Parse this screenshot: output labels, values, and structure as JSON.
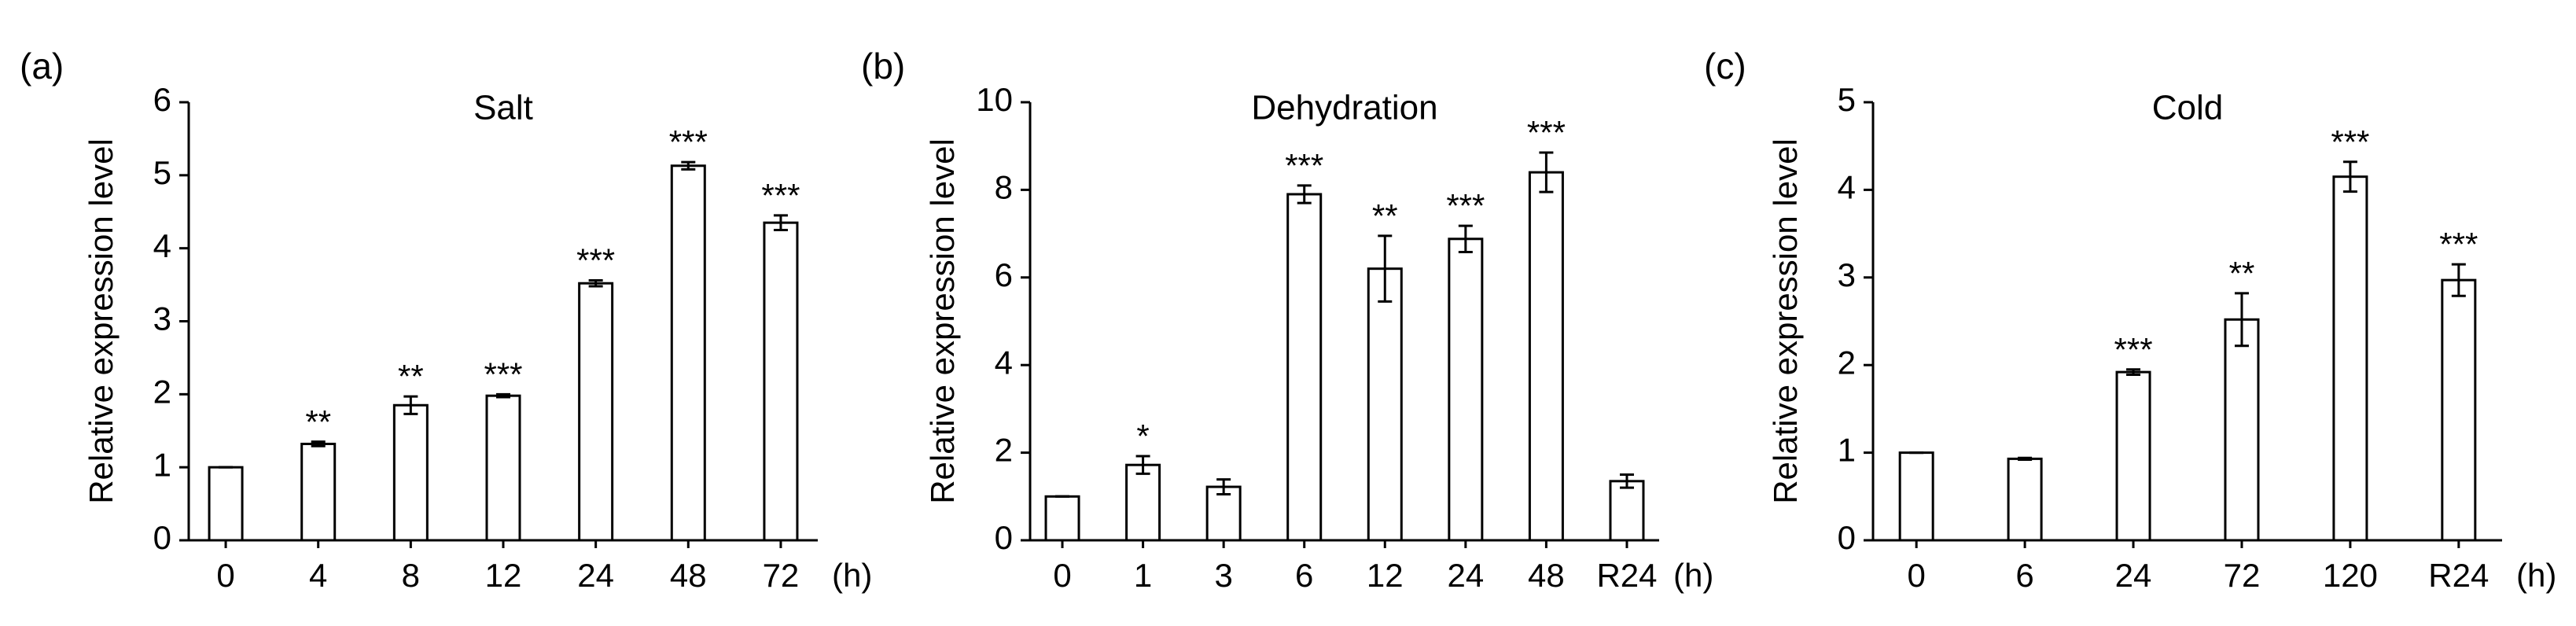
{
  "chart_data": [
    {
      "type": "bar",
      "panel_label": "(a)",
      "title": "Salt",
      "ylabel": "Relative expression level",
      "xunit": "(h)",
      "categories": [
        "0",
        "4",
        "8",
        "12",
        "24",
        "48",
        "72"
      ],
      "values": [
        1,
        1.32,
        1.85,
        1.98,
        3.52,
        5.13,
        4.35
      ],
      "errors": [
        0,
        0.03,
        0.12,
        0.02,
        0.04,
        0.05,
        0.1
      ],
      "annotations": [
        null,
        "**",
        "**",
        "***",
        "***",
        "***",
        "***"
      ],
      "ylim": [
        0,
        6
      ],
      "yticks": [
        0,
        1,
        2,
        3,
        4,
        5,
        6
      ],
      "color": "#ffffff",
      "edgecolor": "#000000"
    },
    {
      "type": "bar",
      "panel_label": "(b)",
      "title": "Dehydration",
      "ylabel": "Relative expression level",
      "xunit": "(h)",
      "categories": [
        "0",
        "1",
        "3",
        "6",
        "12",
        "24",
        "48",
        "R24"
      ],
      "values": [
        1,
        1.72,
        1.22,
        7.9,
        6.2,
        6.88,
        8.4,
        1.35
      ],
      "errors": [
        0,
        0.2,
        0.17,
        0.2,
        0.75,
        0.3,
        0.45,
        0.15
      ],
      "annotations": [
        null,
        "*",
        null,
        "***",
        "**",
        "***",
        "***",
        null
      ],
      "ylim": [
        0,
        10
      ],
      "yticks": [
        0,
        2,
        4,
        6,
        8,
        10
      ],
      "color": "#ffffff",
      "edgecolor": "#000000"
    },
    {
      "type": "bar",
      "panel_label": "(c)",
      "title": "Cold",
      "ylabel": "Relative expression level",
      "xunit": "(h)",
      "categories": [
        "0",
        "6",
        "24",
        "72",
        "120",
        "R24"
      ],
      "values": [
        1,
        0.93,
        1.92,
        2.52,
        4.15,
        2.97
      ],
      "errors": [
        0,
        0.01,
        0.03,
        0.3,
        0.17,
        0.18
      ],
      "annotations": [
        null,
        null,
        "***",
        "**",
        "***",
        "***"
      ],
      "ylim": [
        0,
        5
      ],
      "yticks": [
        0,
        1,
        2,
        3,
        4,
        5
      ],
      "color": "#ffffff",
      "edgecolor": "#000000"
    }
  ]
}
